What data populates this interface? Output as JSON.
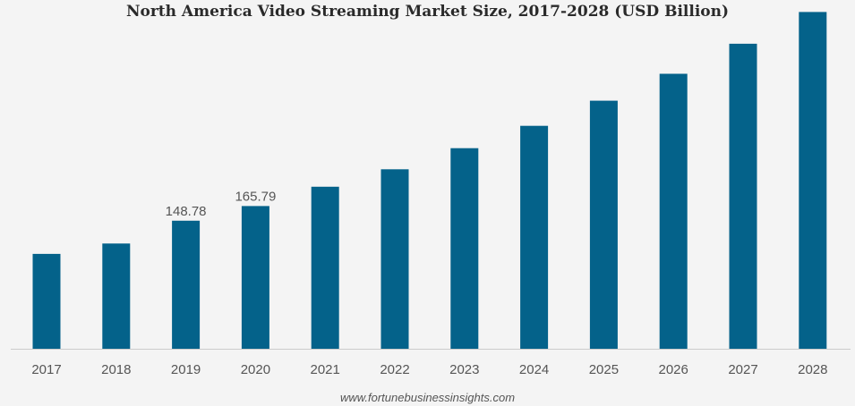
{
  "chart_data": {
    "type": "bar",
    "title": "North America Video Streaming Market Size, 2017-2028 (USD Billion)",
    "categories": [
      "2017",
      "2018",
      "2019",
      "2020",
      "2021",
      "2022",
      "2023",
      "2024",
      "2025",
      "2026",
      "2027",
      "2028"
    ],
    "values": [
      110.2,
      122.3,
      148.78,
      165.79,
      188.3,
      208.5,
      233.0,
      259.0,
      288.2,
      319.5,
      354.4,
      391.3
    ],
    "data_labels": [
      null,
      null,
      "148.78",
      "165.79",
      null,
      null,
      null,
      null,
      null,
      null,
      null,
      null
    ],
    "colors": {
      "bar": "#04628a",
      "axis": "#cccccc",
      "text": "#555555",
      "background": "#f4f4f4"
    },
    "ylim": [
      0,
      400
    ],
    "grid": false,
    "legend": "none"
  },
  "source": "www.fortunebusinessinsights.com"
}
